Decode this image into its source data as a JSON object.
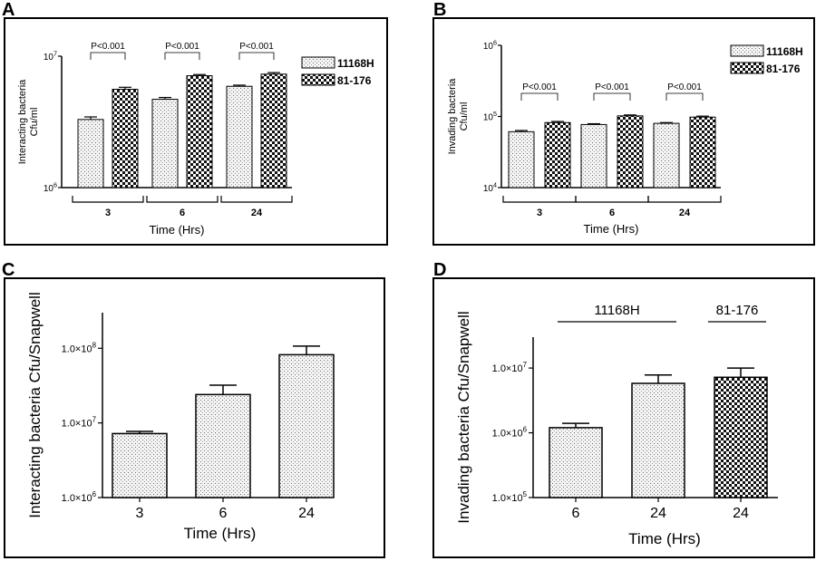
{
  "figure": {
    "panel_letters": [
      "A",
      "B",
      "C",
      "D"
    ]
  },
  "colors": {
    "ink": "#000000",
    "fill_11168H": "#e8e8e8",
    "fill_81_176": "#000000",
    "background": "#ffffff"
  },
  "chart_data": [
    {
      "panel": "A",
      "type": "bar",
      "yscale": "log",
      "categories": [
        "3",
        "6",
        "24"
      ],
      "series": [
        {
          "name": "11168H",
          "pattern": "dotted",
          "values": [
            3300000,
            4700000,
            5900000
          ],
          "errors": [
            150000,
            150000,
            120000
          ]
        },
        {
          "name": "81-176",
          "pattern": "checker",
          "values": [
            5600000,
            7100000,
            7300000
          ],
          "errors": [
            200000,
            150000,
            200000
          ]
        }
      ],
      "ylim": [
        1000000,
        10000000
      ],
      "yticks": [
        {
          "value": 10000000,
          "base": "10",
          "exp": "7"
        },
        {
          "value": 1000000,
          "base": "10",
          "exp": "6"
        }
      ],
      "xlabel": "Time (Hrs)",
      "ylabel_lines": [
        "Interacting bacteria",
        "Cfu/ml"
      ],
      "annotations": [
        "P<0.001",
        "P<0.001",
        "P<0.001"
      ],
      "legend": [
        "11168H",
        "81-176"
      ],
      "legend_position": "top-right",
      "grid": false
    },
    {
      "panel": "B",
      "type": "bar",
      "yscale": "log",
      "categories": [
        "3",
        "6",
        "24"
      ],
      "series": [
        {
          "name": "11168H",
          "pattern": "dotted",
          "values": [
            61000,
            77000,
            80000
          ],
          "errors": [
            2500,
            2000,
            2000
          ]
        },
        {
          "name": "81-176",
          "pattern": "checker",
          "values": [
            82000,
            102000,
            98000
          ],
          "errors": [
            3000,
            3000,
            3000
          ]
        }
      ],
      "ylim": [
        10000,
        1000000
      ],
      "yticks": [
        {
          "value": 1000000,
          "base": "10",
          "exp": "6"
        },
        {
          "value": 100000,
          "base": "10",
          "exp": "5"
        },
        {
          "value": 10000,
          "base": "10",
          "exp": "4"
        }
      ],
      "xlabel": "Time (Hrs)",
      "ylabel_lines": [
        "Invading bacteria",
        "Cfu/ml"
      ],
      "annotations": [
        "P<0.001",
        "P<0.001",
        "P<0.001"
      ],
      "legend": [
        "11168H",
        "81-176"
      ],
      "legend_position": "top-right",
      "grid": false
    },
    {
      "panel": "C",
      "type": "bar",
      "yscale": "log",
      "categories": [
        "3",
        "6",
        "24"
      ],
      "series": [
        {
          "name": "11168H",
          "pattern": "dotted",
          "values": [
            7200000,
            24000000,
            82000000
          ],
          "errors": [
            500000,
            8000000,
            25000000
          ]
        }
      ],
      "ylim": [
        1000000,
        300000000
      ],
      "yticks": [
        {
          "value": 100000000,
          "base": "1.0×10",
          "exp": "8"
        },
        {
          "value": 10000000,
          "base": "1.0×10",
          "exp": "7"
        },
        {
          "value": 1000000,
          "base": "1.0×10",
          "exp": "6"
        }
      ],
      "xlabel": "Time (Hrs)",
      "ylabel": "Interacting bacteria Cfu/Snapwell",
      "grid": false
    },
    {
      "panel": "D",
      "type": "bar",
      "yscale": "log",
      "categories": [
        "6",
        "24",
        "24"
      ],
      "series": [
        {
          "name": "bars",
          "patterns": [
            "dotted",
            "dotted",
            "checker"
          ],
          "values": [
            1200000,
            5800000,
            7200000
          ],
          "errors": [
            200000,
            2000000,
            2800000
          ]
        }
      ],
      "ylim": [
        100000,
        30000000
      ],
      "yticks": [
        {
          "value": 10000000,
          "base": "1.0×10",
          "exp": "7"
        },
        {
          "value": 1000000,
          "base": "1.0×10",
          "exp": "6"
        },
        {
          "value": 100000,
          "base": "1.0×10",
          "exp": "5"
        }
      ],
      "xlabel": "Time (Hrs)",
      "ylabel": "Invading bacteria Cfu/Snapwell",
      "group_labels": [
        "11168H",
        "81-176"
      ],
      "grid": false
    }
  ]
}
